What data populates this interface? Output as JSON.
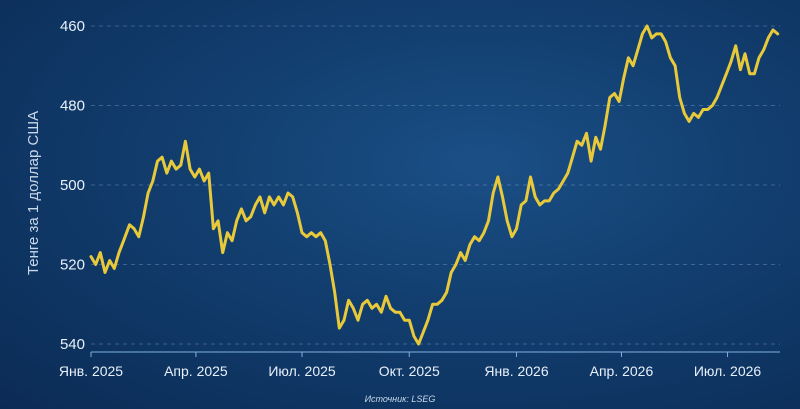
{
  "chart_data": {
    "type": "line",
    "ylabel": "Тенге за 1 доллар США",
    "source": "Источник: LSEG",
    "y_inverted": true,
    "ylim": [
      542,
      458
    ],
    "yticks": [
      460,
      480,
      500,
      520,
      540
    ],
    "x_start": "2025-01-01",
    "x_end": "2026-08-15",
    "xticks": [
      {
        "label": "Янв. 2025",
        "date": "2025-01-01"
      },
      {
        "label": "Апр. 2025",
        "date": "2025-04-01"
      },
      {
        "label": "Июл. 2025",
        "date": "2025-07-01"
      },
      {
        "label": "Окт. 2025",
        "date": "2025-10-01"
      },
      {
        "label": "Янв. 2026",
        "date": "2026-01-01"
      },
      {
        "label": "Апр. 2026",
        "date": "2026-04-01"
      },
      {
        "label": "Июл. 2026",
        "date": "2026-07-01"
      }
    ],
    "grid": true,
    "series": [
      {
        "color": "#e7c93a",
        "points": [
          [
            "2025-01-01",
            518
          ],
          [
            "2025-01-05",
            520
          ],
          [
            "2025-01-09",
            517
          ],
          [
            "2025-01-13",
            522
          ],
          [
            "2025-01-17",
            519
          ],
          [
            "2025-01-21",
            521
          ],
          [
            "2025-01-25",
            517
          ],
          [
            "2025-01-29",
            514
          ],
          [
            "2025-02-03",
            510
          ],
          [
            "2025-02-07",
            511
          ],
          [
            "2025-02-11",
            513
          ],
          [
            "2025-02-15",
            508
          ],
          [
            "2025-02-19",
            502
          ],
          [
            "2025-02-23",
            499
          ],
          [
            "2025-02-27",
            494
          ],
          [
            "2025-03-03",
            493
          ],
          [
            "2025-03-07",
            497
          ],
          [
            "2025-03-11",
            494
          ],
          [
            "2025-03-15",
            496
          ],
          [
            "2025-03-19",
            495
          ],
          [
            "2025-03-23",
            489
          ],
          [
            "2025-03-27",
            496
          ],
          [
            "2025-03-31",
            498
          ],
          [
            "2025-04-04",
            496
          ],
          [
            "2025-04-08",
            499
          ],
          [
            "2025-04-12",
            497
          ],
          [
            "2025-04-16",
            511
          ],
          [
            "2025-04-20",
            509
          ],
          [
            "2025-04-24",
            517
          ],
          [
            "2025-04-28",
            512
          ],
          [
            "2025-05-02",
            514
          ],
          [
            "2025-05-06",
            509
          ],
          [
            "2025-05-10",
            506
          ],
          [
            "2025-05-14",
            509
          ],
          [
            "2025-05-18",
            508
          ],
          [
            "2025-05-22",
            505
          ],
          [
            "2025-05-26",
            503
          ],
          [
            "2025-05-30",
            507
          ],
          [
            "2025-06-03",
            503
          ],
          [
            "2025-06-07",
            505
          ],
          [
            "2025-06-11",
            503
          ],
          [
            "2025-06-15",
            505
          ],
          [
            "2025-06-19",
            502
          ],
          [
            "2025-06-23",
            503
          ],
          [
            "2025-06-27",
            507
          ],
          [
            "2025-07-01",
            512
          ],
          [
            "2025-07-05",
            513
          ],
          [
            "2025-07-09",
            512
          ],
          [
            "2025-07-13",
            513
          ],
          [
            "2025-07-17",
            512
          ],
          [
            "2025-07-21",
            514
          ],
          [
            "2025-07-25",
            520
          ],
          [
            "2025-07-29",
            527
          ],
          [
            "2025-08-02",
            536
          ],
          [
            "2025-08-06",
            534
          ],
          [
            "2025-08-10",
            529
          ],
          [
            "2025-08-14",
            531
          ],
          [
            "2025-08-18",
            534
          ],
          [
            "2025-08-22",
            530
          ],
          [
            "2025-08-26",
            529
          ],
          [
            "2025-08-30",
            531
          ],
          [
            "2025-09-03",
            530
          ],
          [
            "2025-09-07",
            532
          ],
          [
            "2025-09-11",
            528
          ],
          [
            "2025-09-15",
            531
          ],
          [
            "2025-09-19",
            532
          ],
          [
            "2025-09-23",
            532
          ],
          [
            "2025-09-27",
            534
          ],
          [
            "2025-10-01",
            534
          ],
          [
            "2025-10-05",
            538
          ],
          [
            "2025-10-09",
            540
          ],
          [
            "2025-10-13",
            537
          ],
          [
            "2025-10-17",
            534
          ],
          [
            "2025-10-21",
            530
          ],
          [
            "2025-10-25",
            530
          ],
          [
            "2025-10-29",
            529
          ],
          [
            "2025-11-02",
            527
          ],
          [
            "2025-11-06",
            522
          ],
          [
            "2025-11-10",
            520
          ],
          [
            "2025-11-14",
            517
          ],
          [
            "2025-11-18",
            519
          ],
          [
            "2025-11-22",
            515
          ],
          [
            "2025-11-26",
            513
          ],
          [
            "2025-11-30",
            514
          ],
          [
            "2025-12-04",
            512
          ],
          [
            "2025-12-08",
            509
          ],
          [
            "2025-12-12",
            502
          ],
          [
            "2025-12-16",
            498
          ],
          [
            "2025-12-20",
            503
          ],
          [
            "2025-12-24",
            509
          ],
          [
            "2025-12-28",
            513
          ],
          [
            "2026-01-01",
            511
          ],
          [
            "2026-01-05",
            505
          ],
          [
            "2026-01-09",
            504
          ],
          [
            "2026-01-13",
            498
          ],
          [
            "2026-01-17",
            503
          ],
          [
            "2026-01-21",
            505
          ],
          [
            "2026-01-25",
            504
          ],
          [
            "2026-01-29",
            504
          ],
          [
            "2026-02-02",
            502
          ],
          [
            "2026-02-06",
            501
          ],
          [
            "2026-02-10",
            499
          ],
          [
            "2026-02-14",
            497
          ],
          [
            "2026-02-18",
            493
          ],
          [
            "2026-02-22",
            489
          ],
          [
            "2026-02-26",
            490
          ],
          [
            "2026-03-02",
            487
          ],
          [
            "2026-03-06",
            494
          ],
          [
            "2026-03-10",
            488
          ],
          [
            "2026-03-14",
            491
          ],
          [
            "2026-03-18",
            485
          ],
          [
            "2026-03-22",
            478
          ],
          [
            "2026-03-26",
            477
          ],
          [
            "2026-03-30",
            479
          ],
          [
            "2026-04-03",
            473
          ],
          [
            "2026-04-07",
            468
          ],
          [
            "2026-04-11",
            470
          ],
          [
            "2026-04-15",
            466
          ],
          [
            "2026-04-19",
            462
          ],
          [
            "2026-04-23",
            460
          ],
          [
            "2026-04-27",
            463
          ],
          [
            "2026-05-01",
            462
          ],
          [
            "2026-05-05",
            462
          ],
          [
            "2026-05-09",
            464
          ],
          [
            "2026-05-13",
            468
          ],
          [
            "2026-05-17",
            470
          ],
          [
            "2026-05-21",
            478
          ],
          [
            "2026-05-25",
            482
          ],
          [
            "2026-05-29",
            484
          ],
          [
            "2026-06-02",
            482
          ],
          [
            "2026-06-06",
            483
          ],
          [
            "2026-06-10",
            481
          ],
          [
            "2026-06-14",
            481
          ],
          [
            "2026-06-18",
            480
          ],
          [
            "2026-06-22",
            478
          ],
          [
            "2026-06-26",
            475
          ],
          [
            "2026-06-30",
            472
          ],
          [
            "2026-07-04",
            469
          ],
          [
            "2026-07-08",
            465
          ],
          [
            "2026-07-12",
            471
          ],
          [
            "2026-07-16",
            467
          ],
          [
            "2026-07-20",
            472
          ],
          [
            "2026-07-24",
            472
          ],
          [
            "2026-07-28",
            468
          ],
          [
            "2026-08-01",
            466
          ],
          [
            "2026-08-05",
            463
          ],
          [
            "2026-08-09",
            461
          ],
          [
            "2026-08-13",
            462
          ]
        ]
      }
    ]
  }
}
